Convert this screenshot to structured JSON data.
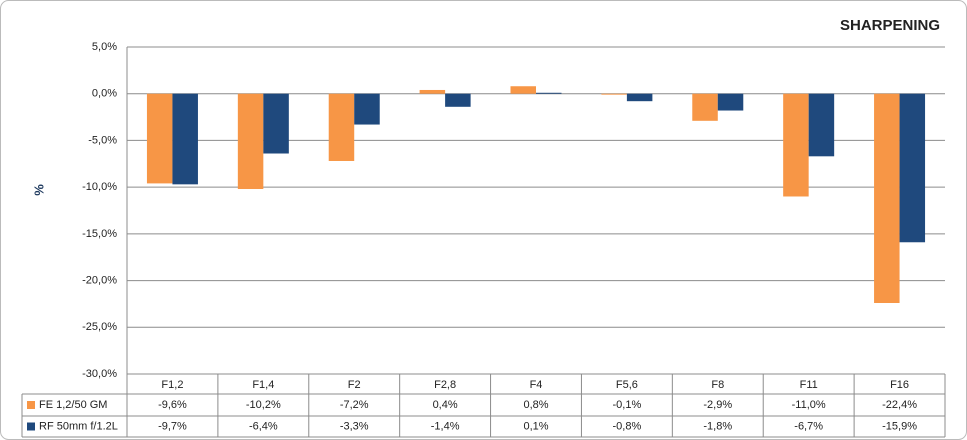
{
  "chart_data": {
    "type": "bar",
    "title": "SHARPENING",
    "y_label": "%",
    "categories": [
      "F1,2",
      "F1,4",
      "F2",
      "F2,8",
      "F4",
      "F5,6",
      "F8",
      "F11",
      "F16"
    ],
    "series": [
      {
        "name": "FE 1,2/50 GM",
        "color": "#f79646",
        "values": [
          -9.6,
          -10.2,
          -7.2,
          0.4,
          0.8,
          -0.1,
          -2.9,
          -11.0,
          -22.4
        ],
        "value_labels": [
          "-9,6%",
          "-10,2%",
          "-7,2%",
          "0,4%",
          "0,8%",
          "-0,1%",
          "-2,9%",
          "-11,0%",
          "-22,4%"
        ]
      },
      {
        "name": "RF 50mm f/1.2L",
        "color": "#1f497d",
        "values": [
          -9.7,
          -6.4,
          -3.3,
          -1.4,
          0.1,
          -0.8,
          -1.8,
          -6.7,
          -15.9
        ],
        "value_labels": [
          "-9,7%",
          "-6,4%",
          "-3,3%",
          "-1,4%",
          "0,1%",
          "-0,8%",
          "-1,8%",
          "-6,7%",
          "-15,9%"
        ]
      }
    ],
    "ylim": [
      -30,
      5
    ],
    "yticks": [
      {
        "value": 5,
        "label": "5,0%"
      },
      {
        "value": 0,
        "label": "0,0%"
      },
      {
        "value": -5,
        "label": "-5,0%"
      },
      {
        "value": -10,
        "label": "-10,0%"
      },
      {
        "value": -15,
        "label": "-15,0%"
      },
      {
        "value": -20,
        "label": "-20,0%"
      },
      {
        "value": -25,
        "label": "-25,0%"
      },
      {
        "value": -30,
        "label": "-30,0%"
      }
    ],
    "grid": true
  }
}
